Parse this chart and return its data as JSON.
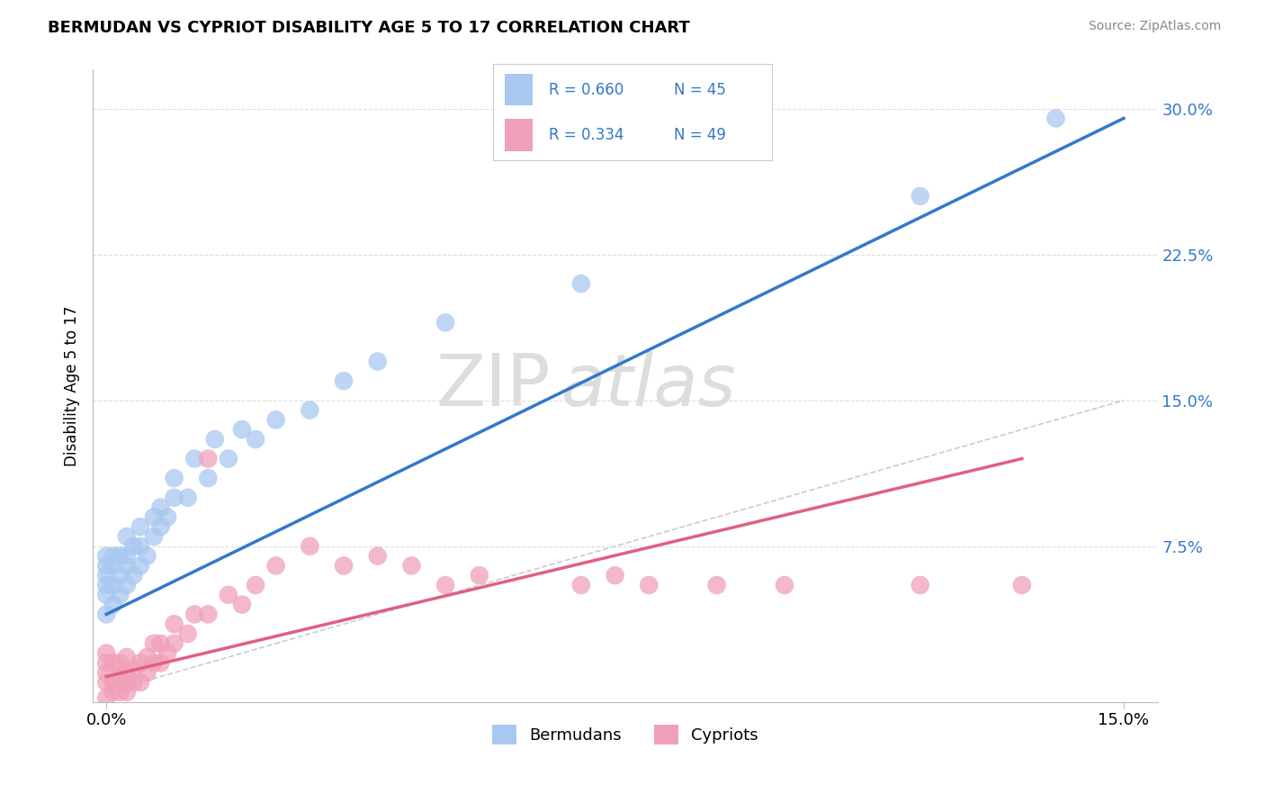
{
  "title": "BERMUDAN VS CYPRIOT DISABILITY AGE 5 TO 17 CORRELATION CHART",
  "source_text": "Source: ZipAtlas.com",
  "ylabel": "Disability Age 5 to 17",
  "xlim": [
    -0.002,
    0.155
  ],
  "ylim": [
    -0.005,
    0.32
  ],
  "ytick_values_right": [
    0.075,
    0.15,
    0.225,
    0.3
  ],
  "ytick_labels_right": [
    "7.5%",
    "15.0%",
    "22.5%",
    "30.0%"
  ],
  "xtick_values": [
    0.0,
    0.15
  ],
  "xtick_labels": [
    "0.0%",
    "15.0%"
  ],
  "legend_r1": "R = 0.660",
  "legend_n1": "N = 45",
  "legend_r2": "R = 0.334",
  "legend_n2": "N = 49",
  "color_bermuda": "#A8C8F0",
  "color_cypriot": "#F0A0B8",
  "color_line_bermuda": "#3378CC",
  "color_line_cypriot": "#E06080",
  "color_diagonal": "#CCCCCC",
  "watermark_color": "#DDDDDD",
  "bermuda_scatter_x": [
    0.0,
    0.0,
    0.0,
    0.0,
    0.0,
    0.0,
    0.001,
    0.001,
    0.001,
    0.001,
    0.002,
    0.002,
    0.002,
    0.003,
    0.003,
    0.003,
    0.003,
    0.004,
    0.004,
    0.005,
    0.005,
    0.005,
    0.006,
    0.007,
    0.007,
    0.008,
    0.008,
    0.009,
    0.01,
    0.01,
    0.012,
    0.013,
    0.015,
    0.016,
    0.018,
    0.02,
    0.022,
    0.025,
    0.03,
    0.035,
    0.04,
    0.05,
    0.07,
    0.12,
    0.14
  ],
  "bermuda_scatter_y": [
    0.04,
    0.05,
    0.055,
    0.06,
    0.065,
    0.07,
    0.045,
    0.055,
    0.065,
    0.07,
    0.05,
    0.06,
    0.07,
    0.055,
    0.065,
    0.07,
    0.08,
    0.06,
    0.075,
    0.065,
    0.075,
    0.085,
    0.07,
    0.08,
    0.09,
    0.085,
    0.095,
    0.09,
    0.1,
    0.11,
    0.1,
    0.12,
    0.11,
    0.13,
    0.12,
    0.135,
    0.13,
    0.14,
    0.145,
    0.16,
    0.17,
    0.19,
    0.21,
    0.255,
    0.295
  ],
  "cypriot_scatter_x": [
    0.0,
    0.0,
    0.0,
    0.0,
    0.0,
    0.001,
    0.001,
    0.001,
    0.002,
    0.002,
    0.002,
    0.003,
    0.003,
    0.003,
    0.003,
    0.004,
    0.004,
    0.005,
    0.005,
    0.006,
    0.006,
    0.007,
    0.007,
    0.008,
    0.008,
    0.009,
    0.01,
    0.01,
    0.012,
    0.013,
    0.015,
    0.015,
    0.018,
    0.02,
    0.022,
    0.025,
    0.03,
    0.035,
    0.04,
    0.045,
    0.05,
    0.055,
    0.07,
    0.075,
    0.08,
    0.09,
    0.1,
    0.12,
    0.135
  ],
  "cypriot_scatter_y": [
    -0.003,
    0.005,
    0.01,
    0.015,
    0.02,
    0.0,
    0.005,
    0.015,
    0.0,
    0.008,
    0.015,
    0.0,
    0.005,
    0.01,
    0.018,
    0.005,
    0.012,
    0.005,
    0.015,
    0.01,
    0.018,
    0.015,
    0.025,
    0.015,
    0.025,
    0.02,
    0.025,
    0.035,
    0.03,
    0.04,
    0.04,
    0.12,
    0.05,
    0.045,
    0.055,
    0.065,
    0.075,
    0.065,
    0.07,
    0.065,
    0.055,
    0.06,
    0.055,
    0.06,
    0.055,
    0.055,
    0.055,
    0.055,
    0.055
  ],
  "bermuda_line_x": [
    0.0,
    0.15
  ],
  "bermuda_line_y": [
    0.04,
    0.295
  ],
  "cypriot_line_x": [
    0.0,
    0.135
  ],
  "cypriot_line_y": [
    0.008,
    0.12
  ],
  "bg_color": "#FFFFFF",
  "grid_color": "#DDDDDD"
}
